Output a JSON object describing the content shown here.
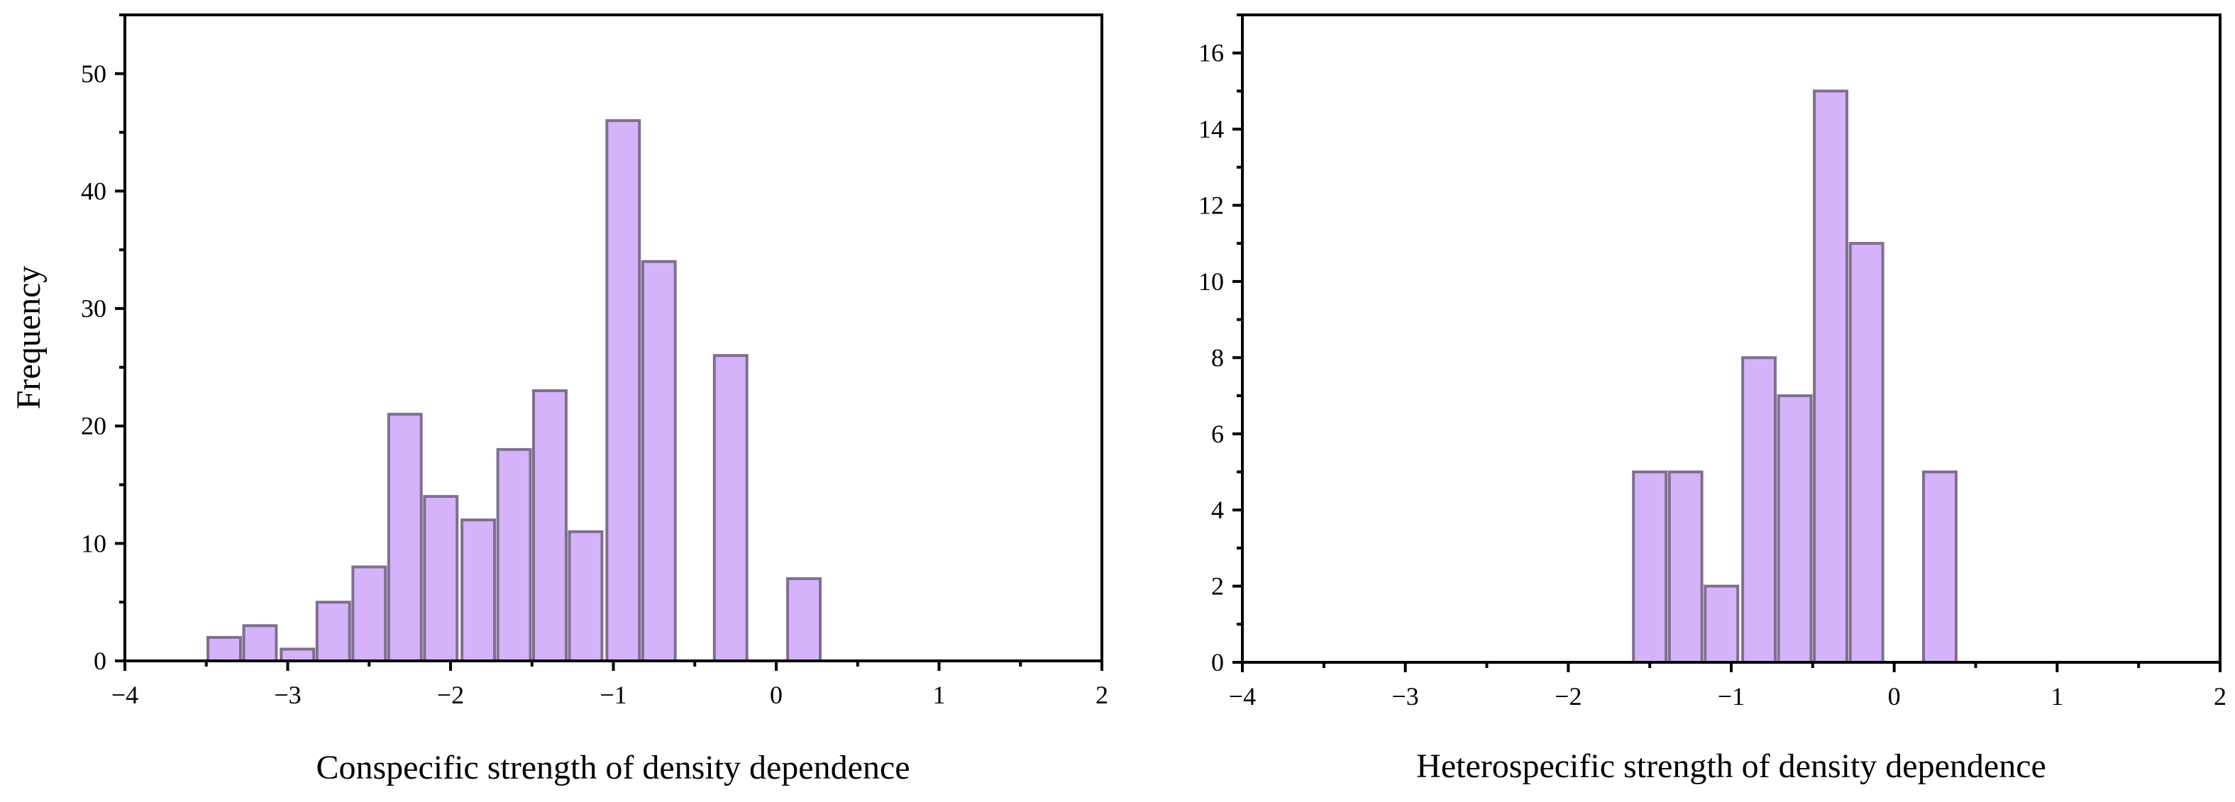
{
  "chart_data": [
    {
      "type": "bar",
      "id": "conspecific",
      "title": "",
      "xlabel": "Conspecific strength of density dependence",
      "ylabel": "Frequency",
      "xlim": [
        -4,
        2
      ],
      "ylim": [
        0,
        55
      ],
      "x_major_ticks": [
        -4,
        -3,
        -2,
        -1,
        0,
        1,
        2
      ],
      "x_tick_labels": [
        "−4",
        "−3",
        "−2",
        "−1",
        "0",
        "1",
        "2"
      ],
      "y_major_ticks": [
        0,
        10,
        20,
        30,
        40,
        50
      ],
      "y_tick_labels": [
        "0",
        "10",
        "20",
        "30",
        "40",
        "50"
      ],
      "bin_width": 0.222,
      "bar_width": 0.2,
      "bars": [
        {
          "center": -3.39,
          "value": 2
        },
        {
          "center": -3.17,
          "value": 3
        },
        {
          "center": -2.94,
          "value": 1
        },
        {
          "center": -2.72,
          "value": 5
        },
        {
          "center": -2.5,
          "value": 8
        },
        {
          "center": -2.28,
          "value": 21
        },
        {
          "center": -2.06,
          "value": 14
        },
        {
          "center": -1.83,
          "value": 12
        },
        {
          "center": -1.61,
          "value": 18
        },
        {
          "center": -1.39,
          "value": 23
        },
        {
          "center": -1.17,
          "value": 11
        },
        {
          "center": -0.94,
          "value": 46
        },
        {
          "center": -0.72,
          "value": 34
        },
        {
          "center": -0.28,
          "value": 26
        },
        {
          "center": 0.17,
          "value": 7
        }
      ]
    },
    {
      "type": "bar",
      "id": "heterospecific",
      "title": "",
      "xlabel": "Heterospecific strength of density dependence",
      "ylabel": "",
      "xlim": [
        -4,
        2
      ],
      "ylim": [
        0,
        17
      ],
      "x_major_ticks": [
        -4,
        -3,
        -2,
        -1,
        0,
        1,
        2
      ],
      "x_tick_labels": [
        "−4",
        "−3",
        "−2",
        "−1",
        "0",
        "1",
        "2"
      ],
      "y_major_ticks": [
        0,
        2,
        4,
        6,
        8,
        10,
        12,
        14,
        16
      ],
      "y_tick_labels": [
        "0",
        "2",
        "4",
        "6",
        "8",
        "10",
        "12",
        "14",
        "16"
      ],
      "bin_width": 0.222,
      "bar_width": 0.2,
      "bars": [
        {
          "center": -1.5,
          "value": 5
        },
        {
          "center": -1.28,
          "value": 5
        },
        {
          "center": -1.06,
          "value": 2
        },
        {
          "center": -0.83,
          "value": 8
        },
        {
          "center": -0.61,
          "value": 7
        },
        {
          "center": -0.39,
          "value": 15
        },
        {
          "center": -0.17,
          "value": 11
        },
        {
          "center": 0.28,
          "value": 5
        }
      ]
    }
  ]
}
